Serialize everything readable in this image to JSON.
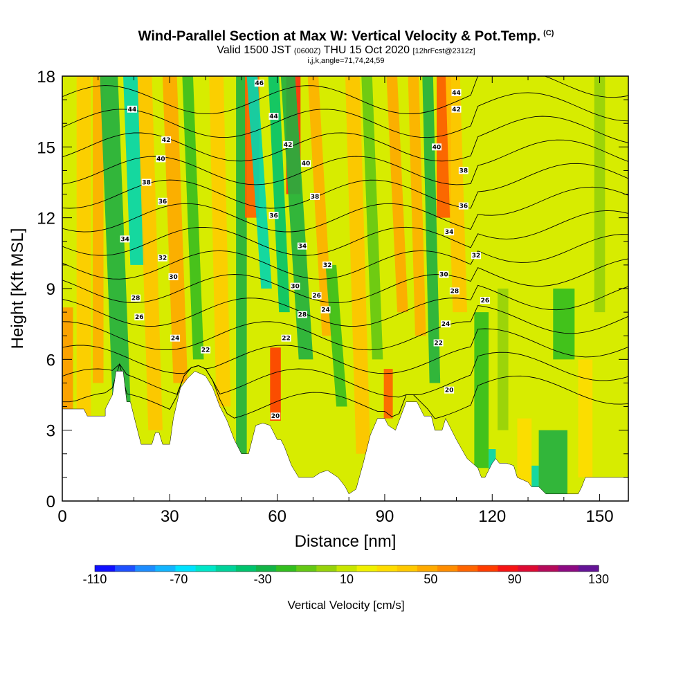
{
  "title": {
    "main": "Wind-Parallel Section at Max W: Vertical Velocity & Pot.Temp.",
    "main_unit": "(C)",
    "line2_a": "Valid 1500 JST",
    "line2_b": "(0600Z)",
    "line2_c": "THU 15 Oct 2020",
    "line2_d": "[12hrFcst@2312z]",
    "line3": "i,j,k,angle=71,74,24,59"
  },
  "chart_data": {
    "type": "heatmap",
    "xlabel": "Distance [nm]",
    "ylabel": "Height [Kft MSL]",
    "xlim": [
      0,
      158
    ],
    "ylim": [
      0,
      18
    ],
    "x_ticks": [
      0,
      30,
      60,
      90,
      120,
      150
    ],
    "y_ticks": [
      0,
      3,
      6,
      9,
      12,
      15,
      18
    ],
    "x_ticks_major": [
      "0",
      "30",
      "60",
      "90",
      "120",
      "150"
    ],
    "y_ticks_major": [
      "0",
      "3",
      "6",
      "9",
      "12",
      "15",
      "18"
    ],
    "background_field": "Vertical Velocity [cm/s]",
    "terrain_profile_kft": [
      [
        0,
        3.9
      ],
      [
        6,
        3.9
      ],
      [
        7,
        3.6
      ],
      [
        12,
        3.6
      ],
      [
        12,
        3.9
      ],
      [
        14,
        4.5
      ],
      [
        15,
        5.5
      ],
      [
        17,
        5.5
      ],
      [
        18,
        4.2
      ],
      [
        19,
        4.2
      ],
      [
        20,
        3.6
      ],
      [
        21,
        3.0
      ],
      [
        22,
        2.4
      ],
      [
        25,
        2.4
      ],
      [
        26,
        2.9
      ],
      [
        27,
        2.9
      ],
      [
        28,
        2.4
      ],
      [
        30,
        2.4
      ],
      [
        31,
        3.5
      ],
      [
        33,
        4.8
      ],
      [
        35,
        5.2
      ],
      [
        37,
        5.5
      ],
      [
        40,
        5.3
      ],
      [
        42,
        4.8
      ],
      [
        44,
        4.0
      ],
      [
        46,
        3.4
      ],
      [
        48,
        2.6
      ],
      [
        50,
        2.0
      ],
      [
        52,
        2.0
      ],
      [
        53,
        2.6
      ],
      [
        54,
        3.2
      ],
      [
        56,
        3.3
      ],
      [
        58,
        3.2
      ],
      [
        60,
        2.6
      ],
      [
        61,
        2.6
      ],
      [
        62,
        2.3
      ],
      [
        64,
        1.5
      ],
      [
        66,
        1.0
      ],
      [
        70,
        1.0
      ],
      [
        72,
        1.2
      ],
      [
        74,
        1.3
      ],
      [
        77,
        1.0
      ],
      [
        79,
        0.6
      ],
      [
        80,
        0.3
      ],
      [
        82,
        0.5
      ],
      [
        84,
        1.6
      ],
      [
        86,
        2.8
      ],
      [
        88,
        3.5
      ],
      [
        90,
        3.5
      ],
      [
        91,
        3.2
      ],
      [
        93,
        3.0
      ],
      [
        94,
        3.4
      ],
      [
        96,
        4.2
      ],
      [
        99,
        4.2
      ],
      [
        101,
        3.6
      ],
      [
        103,
        3.6
      ],
      [
        104,
        3.0
      ],
      [
        106,
        3.0
      ],
      [
        107,
        3.5
      ],
      [
        108,
        3.2
      ],
      [
        110,
        2.6
      ],
      [
        113,
        1.8
      ],
      [
        116,
        1.4
      ],
      [
        117,
        1.0
      ],
      [
        118,
        1.0
      ],
      [
        120,
        1.6
      ],
      [
        121,
        1.8
      ],
      [
        122,
        1.6
      ],
      [
        124,
        1.6
      ],
      [
        126,
        1.5
      ],
      [
        127,
        1.0
      ],
      [
        130,
        0.8
      ],
      [
        131,
        0.6
      ],
      [
        133,
        0.6
      ],
      [
        135,
        0.3
      ],
      [
        144,
        0.3
      ],
      [
        145,
        0.6
      ],
      [
        146,
        1.0
      ],
      [
        158,
        1.0
      ]
    ],
    "pot_temp_contours": [
      {
        "value": 20,
        "label": "20"
      },
      {
        "value": 22,
        "label": "22"
      },
      {
        "value": 24,
        "label": "24"
      },
      {
        "value": 26,
        "label": "26"
      },
      {
        "value": 28,
        "label": "28"
      },
      {
        "value": 30,
        "label": "30"
      },
      {
        "value": 32,
        "label": "32"
      },
      {
        "value": 34,
        "label": "34"
      },
      {
        "value": 36,
        "label": "36"
      },
      {
        "value": 38,
        "label": "38"
      },
      {
        "value": 40,
        "label": "40"
      },
      {
        "value": 42,
        "label": "42"
      },
      {
        "value": 44,
        "label": "44"
      },
      {
        "value": 46,
        "label": "46"
      }
    ],
    "contour_labels": [
      {
        "x": 19.5,
        "y": 16.6,
        "text": "44"
      },
      {
        "x": 29,
        "y": 15.3,
        "text": "42"
      },
      {
        "x": 27.5,
        "y": 14.5,
        "text": "40"
      },
      {
        "x": 23.5,
        "y": 13.5,
        "text": "38"
      },
      {
        "x": 28,
        "y": 12.7,
        "text": "36"
      },
      {
        "x": 17.5,
        "y": 11.1,
        "text": "34"
      },
      {
        "x": 28,
        "y": 10.3,
        "text": "32"
      },
      {
        "x": 31,
        "y": 9.5,
        "text": "30"
      },
      {
        "x": 20.5,
        "y": 8.6,
        "text": "28"
      },
      {
        "x": 21.5,
        "y": 7.8,
        "text": "26"
      },
      {
        "x": 31.5,
        "y": 6.9,
        "text": "24"
      },
      {
        "x": 40,
        "y": 6.4,
        "text": "22"
      },
      {
        "x": 55,
        "y": 17.7,
        "text": "46"
      },
      {
        "x": 59,
        "y": 16.3,
        "text": "44"
      },
      {
        "x": 63,
        "y": 15.1,
        "text": "42"
      },
      {
        "x": 68,
        "y": 14.3,
        "text": "40"
      },
      {
        "x": 70.5,
        "y": 12.9,
        "text": "38"
      },
      {
        "x": 59,
        "y": 12.1,
        "text": "36"
      },
      {
        "x": 67,
        "y": 10.8,
        "text": "34"
      },
      {
        "x": 74,
        "y": 10.0,
        "text": "32"
      },
      {
        "x": 65,
        "y": 9.1,
        "text": "30"
      },
      {
        "x": 71,
        "y": 8.7,
        "text": "26"
      },
      {
        "x": 67,
        "y": 7.9,
        "text": "28"
      },
      {
        "x": 73.5,
        "y": 8.1,
        "text": "24"
      },
      {
        "x": 62.5,
        "y": 6.9,
        "text": "22"
      },
      {
        "x": 59.5,
        "y": 3.6,
        "text": "20"
      },
      {
        "x": 110,
        "y": 17.3,
        "text": "44"
      },
      {
        "x": 110,
        "y": 16.6,
        "text": "42"
      },
      {
        "x": 104.5,
        "y": 15.0,
        "text": "40"
      },
      {
        "x": 112,
        "y": 14.0,
        "text": "38"
      },
      {
        "x": 112,
        "y": 12.5,
        "text": "36"
      },
      {
        "x": 108,
        "y": 11.4,
        "text": "34"
      },
      {
        "x": 115.5,
        "y": 10.4,
        "text": "32"
      },
      {
        "x": 106.5,
        "y": 9.6,
        "text": "30"
      },
      {
        "x": 109.5,
        "y": 8.9,
        "text": "28"
      },
      {
        "x": 118,
        "y": 8.5,
        "text": "26"
      },
      {
        "x": 107,
        "y": 7.5,
        "text": "24"
      },
      {
        "x": 105,
        "y": 6.7,
        "text": "22"
      },
      {
        "x": 108,
        "y": 4.7,
        "text": "20"
      }
    ]
  },
  "colorbar": {
    "title": "Vertical Velocity [cm/s]",
    "labels": [
      "-110",
      "-70",
      "-30",
      "10",
      "50",
      "90",
      "130"
    ],
    "colors": [
      "#1010ff",
      "#1e50ff",
      "#1d8cff",
      "#12b4ff",
      "#00e1ff",
      "#00e6c8",
      "#00d29a",
      "#00c36d",
      "#12b446",
      "#32be1e",
      "#64c814",
      "#96d20a",
      "#c8e600",
      "#f0f000",
      "#ffdc00",
      "#ffc800",
      "#ffaa00",
      "#ff8c00",
      "#ff6400",
      "#ff3c00",
      "#f51414",
      "#dc0a32",
      "#b40a5a",
      "#8c0a82",
      "#641496"
    ]
  },
  "colors": {
    "base_fill": "#d7ec00",
    "terrain": "#ffffff"
  }
}
